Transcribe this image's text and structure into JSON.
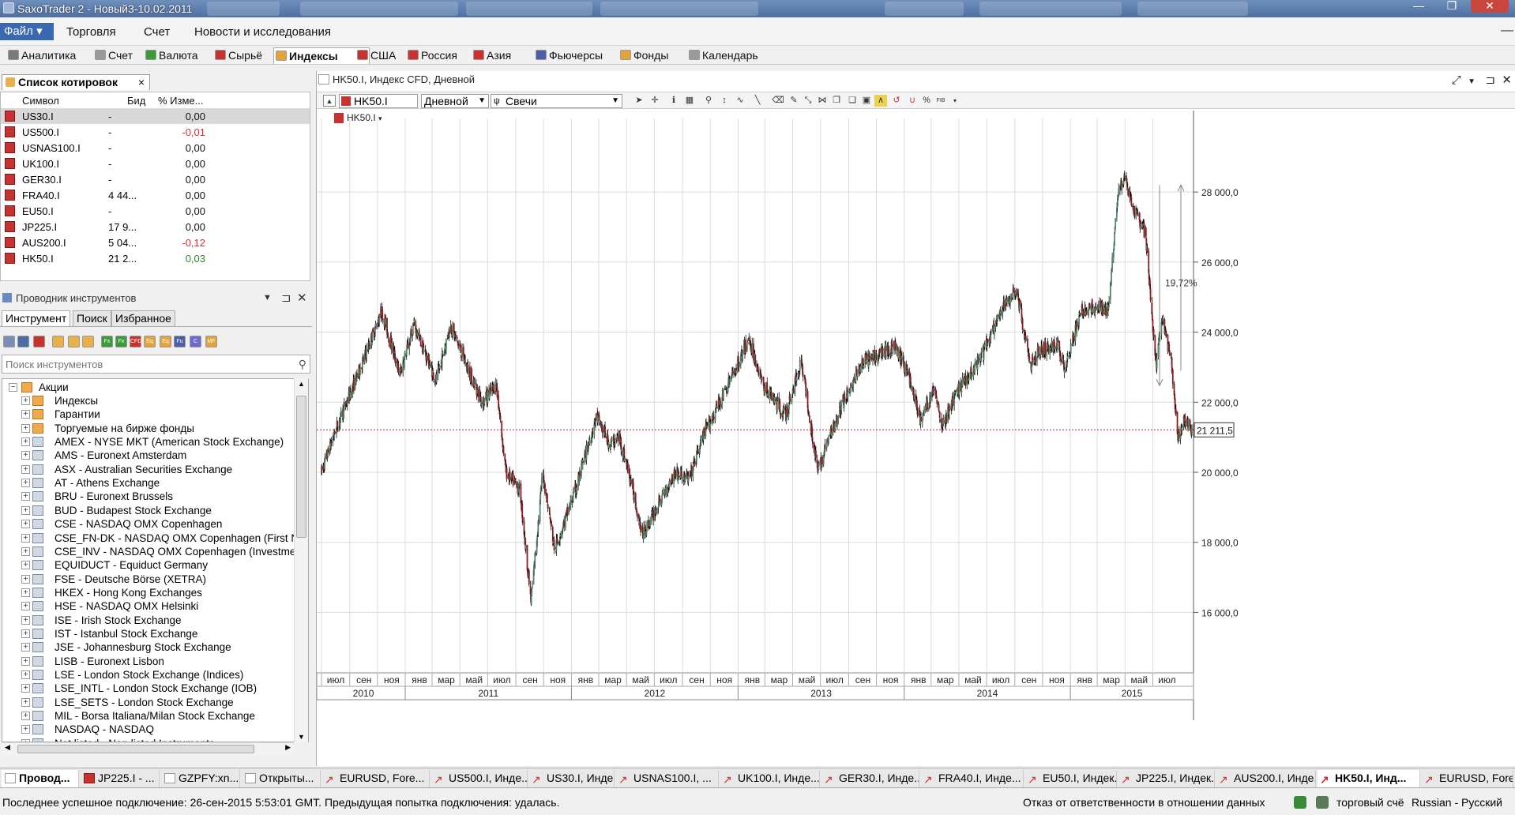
{
  "window": {
    "title": "SaxoTrader 2 - Новый3-10.02.2011",
    "controls": [
      "—",
      "❐",
      "✕"
    ]
  },
  "menu": {
    "file": "Файл",
    "items": [
      "Торговля",
      "Счет",
      "Новости и исследования"
    ],
    "min": "—"
  },
  "module_tabs": [
    {
      "label": "Аналитика",
      "icon": "analytics-icon",
      "color": "#7a7a7a"
    },
    {
      "label": "Счет",
      "icon": "account-icon",
      "color": "#9a9a9a"
    },
    {
      "label": "Валюта",
      "icon": "fx-icon",
      "color": "#3b9a3b"
    },
    {
      "label": "Сырьё",
      "icon": "cfd-icon",
      "color": "#c8322e"
    },
    {
      "label": "Индексы",
      "icon": "indices-icon",
      "color": "#e2a33a"
    },
    {
      "label": "США",
      "icon": "cfd-icon",
      "color": "#c8322e"
    },
    {
      "label": "Россия",
      "icon": "cfd-icon",
      "color": "#c8322e"
    },
    {
      "label": "Азия",
      "icon": "cfd-icon",
      "color": "#c8322e"
    },
    {
      "label": "Фьючерсы",
      "icon": "futures-icon",
      "color": "#4a5fa8"
    },
    {
      "label": "Фонды",
      "icon": "funds-icon",
      "color": "#e2a33a"
    },
    {
      "label": "Календарь",
      "icon": "calendar-icon",
      "color": "#9a9a9a"
    }
  ],
  "watchlist": {
    "tab_label": "Список котировок",
    "columns": {
      "symbol": "Символ",
      "bid": "Бид",
      "change": "% Изме..."
    },
    "rows": [
      {
        "symbol": "US30.I",
        "bid": "-",
        "change": "0,00",
        "dir": "flat"
      },
      {
        "symbol": "US500.I",
        "bid": "-",
        "change": "-0,01",
        "dir": "down"
      },
      {
        "symbol": "USNAS100.I",
        "bid": "-",
        "change": "0,00",
        "dir": "flat"
      },
      {
        "symbol": "UK100.I",
        "bid": "-",
        "change": "0,00",
        "dir": "flat"
      },
      {
        "symbol": "GER30.I",
        "bid": "-",
        "change": "0,00",
        "dir": "flat"
      },
      {
        "symbol": "FRA40.I",
        "bid": "4 44...",
        "change": "0,00",
        "dir": "flat"
      },
      {
        "symbol": "EU50.I",
        "bid": "-",
        "change": "0,00",
        "dir": "flat"
      },
      {
        "symbol": "JP225.I",
        "bid": "17 9...",
        "change": "0,00",
        "dir": "flat"
      },
      {
        "symbol": "AUS200.I",
        "bid": "5 04...",
        "change": "-0,12",
        "dir": "down"
      },
      {
        "symbol": "HK50.I",
        "bid": "21 2...",
        "change": "0,03",
        "dir": "up"
      }
    ],
    "colors": {
      "down": "#d0312d",
      "up": "#2a8a2a",
      "flat": "#111111"
    }
  },
  "explorer": {
    "title": "Проводник инструментов",
    "tabs": [
      "Инструмент",
      "Поиск",
      "Избранное"
    ],
    "search_placeholder": "Поиск инструментов",
    "toolbar_icons": [
      {
        "name": "all-icon",
        "text": "",
        "color": "#7a8fb5"
      },
      {
        "name": "stocks-icon",
        "text": "",
        "color": "#4a6fa8"
      },
      {
        "name": "bonds-icon",
        "text": "",
        "color": "#c8322e"
      },
      {
        "name": "tree-icon-1",
        "text": "",
        "color": "#e8b04a"
      },
      {
        "name": "tree-icon-2",
        "text": "",
        "color": "#e8b04a"
      },
      {
        "name": "tree-icon-3",
        "text": "",
        "color": "#e8b04a"
      },
      {
        "name": "fx-icon",
        "text": "Fx",
        "color": "#3b9a3b"
      },
      {
        "name": "fx-options-icon",
        "text": "Fx",
        "color": "#3b9a3b"
      },
      {
        "name": "cfd-icon",
        "text": "CFD",
        "color": "#c8322e"
      },
      {
        "name": "etf-icon",
        "text": "Eq",
        "color": "#e2a33a"
      },
      {
        "name": "etc-icon",
        "text": "Eq",
        "color": "#e2a33a"
      },
      {
        "name": "futures-icon",
        "text": "Fu",
        "color": "#4a5fa8"
      },
      {
        "name": "commodities-icon",
        "text": "C",
        "color": "#6b6bd0"
      },
      {
        "name": "mutual-funds-icon",
        "text": "MF",
        "color": "#e2a33a"
      }
    ],
    "tree": {
      "root": "Акции",
      "children": [
        {
          "label": "Индексы",
          "icon": "orange"
        },
        {
          "label": "Гарантии",
          "icon": "orange"
        },
        {
          "label": "Торгуемые на бирже фонды",
          "icon": "orange"
        },
        {
          "label": "AMEX - NYSE MKT (American Stock Exchange)",
          "icon": "blue"
        },
        {
          "label": "AMS - Euronext Amsterdam",
          "icon": "blue"
        },
        {
          "label": "ASX - Australian Securities Exchange",
          "icon": "blue"
        },
        {
          "label": "AT - Athens Exchange",
          "icon": "blue"
        },
        {
          "label": "BRU - Euronext Brussels",
          "icon": "blue"
        },
        {
          "label": "BUD - Budapest Stock Exchange",
          "icon": "blue"
        },
        {
          "label": "CSE - NASDAQ OMX Copenhagen",
          "icon": "blue"
        },
        {
          "label": "CSE_FN-DK - NASDAQ OMX Copenhagen (First N",
          "icon": "blue"
        },
        {
          "label": "CSE_INV - NASDAQ OMX Copenhagen (Investme",
          "icon": "blue"
        },
        {
          "label": "EQUIDUCT - Equiduct Germany",
          "icon": "blue"
        },
        {
          "label": "FSE - Deutsche Börse (XETRA)",
          "icon": "blue"
        },
        {
          "label": "HKEX - Hong Kong Exchanges",
          "icon": "blue"
        },
        {
          "label": "HSE - NASDAQ OMX Helsinki",
          "icon": "blue"
        },
        {
          "label": "ISE - Irish Stock Exchange",
          "icon": "blue"
        },
        {
          "label": "IST - Istanbul Stock Exchange",
          "icon": "blue"
        },
        {
          "label": "JSE - Johannesburg Stock Exchange",
          "icon": "blue"
        },
        {
          "label": "LISB - Euronext Lisbon",
          "icon": "blue"
        },
        {
          "label": "LSE - London Stock Exchange (Indices)",
          "icon": "blue"
        },
        {
          "label": "LSE_INTL - London Stock Exchange (IOB)",
          "icon": "blue"
        },
        {
          "label": "LSE_SETS - London Stock Exchange",
          "icon": "blue"
        },
        {
          "label": "MIL - Borsa Italiana/Milan Stock Exchange",
          "icon": "blue"
        },
        {
          "label": "NASDAQ - NASDAQ",
          "icon": "blue"
        },
        {
          "label": "Not listed - Non listed Instruments",
          "icon": "blue"
        }
      ]
    }
  },
  "chart": {
    "window_title": "HK50.I, Индекс CFD, Дневной",
    "instrument": "HK50.I",
    "period": "Дневной",
    "style": "Свечи",
    "series_label": "HK50.I",
    "current_price_label": "21 211,5",
    "current_price": 21211.5,
    "measure_label": "19,72%",
    "y_ticks": [
      "16 000,0",
      "18 000,0",
      "20 000,0",
      "22 000,0",
      "24 000,0",
      "26 000,0",
      "28 000,0"
    ],
    "y_tick_values": [
      16000,
      18000,
      20000,
      22000,
      24000,
      26000,
      28000
    ],
    "ylim": [
      14500,
      30100
    ],
    "months": [
      "июл",
      "сен",
      "ноя",
      "янв",
      "мар",
      "май",
      "июл",
      "сен",
      "ноя",
      "янв",
      "мар",
      "май",
      "июл",
      "сен",
      "ноя",
      "янв",
      "мар",
      "май",
      "июл",
      "сен",
      "ноя",
      "янв",
      "мар",
      "май",
      "июл",
      "сен",
      "ноя",
      "янв",
      "мар",
      "май",
      "июл"
    ],
    "years": [
      "2010",
      "2011",
      "2012",
      "2013",
      "2014",
      "2015"
    ],
    "colors": {
      "up": "#4f8a68",
      "down": "#8b1a22",
      "wick": "#111111",
      "priceline": "#c01818",
      "grid": "#dcdcdc"
    }
  },
  "chart_data": {
    "type": "candlestick",
    "title": "HK50.I, Индекс CFD, Дневной",
    "x_range": [
      "2010-07",
      "2015-09"
    ],
    "ylim": [
      14500,
      30100
    ],
    "last": 21211.5,
    "anchors": [
      {
        "date": "2010-07-01",
        "value": 20000
      },
      {
        "date": "2010-08-01",
        "value": 21200
      },
      {
        "date": "2010-10-01",
        "value": 23200
      },
      {
        "date": "2010-11-10",
        "value": 24600
      },
      {
        "date": "2010-12-20",
        "value": 22800
      },
      {
        "date": "2011-01-20",
        "value": 24200
      },
      {
        "date": "2011-03-10",
        "value": 22600
      },
      {
        "date": "2011-04-10",
        "value": 24200
      },
      {
        "date": "2011-05-20",
        "value": 22900
      },
      {
        "date": "2011-06-20",
        "value": 22000
      },
      {
        "date": "2011-07-20",
        "value": 22500
      },
      {
        "date": "2011-08-10",
        "value": 20000
      },
      {
        "date": "2011-09-10",
        "value": 19500
      },
      {
        "date": "2011-10-04",
        "value": 16300
      },
      {
        "date": "2011-10-30",
        "value": 20000
      },
      {
        "date": "2011-11-25",
        "value": 17800
      },
      {
        "date": "2012-01-10",
        "value": 19500
      },
      {
        "date": "2012-02-25",
        "value": 21600
      },
      {
        "date": "2012-03-25",
        "value": 20800
      },
      {
        "date": "2012-04-15",
        "value": 21000
      },
      {
        "date": "2012-05-10",
        "value": 19800
      },
      {
        "date": "2012-06-05",
        "value": 18200
      },
      {
        "date": "2012-07-15",
        "value": 19200
      },
      {
        "date": "2012-08-15",
        "value": 20000
      },
      {
        "date": "2012-09-15",
        "value": 19800
      },
      {
        "date": "2012-10-15",
        "value": 21000
      },
      {
        "date": "2012-12-10",
        "value": 22500
      },
      {
        "date": "2013-01-25",
        "value": 23800
      },
      {
        "date": "2013-02-25",
        "value": 22500
      },
      {
        "date": "2013-03-25",
        "value": 22000
      },
      {
        "date": "2013-04-15",
        "value": 21600
      },
      {
        "date": "2013-05-20",
        "value": 23200
      },
      {
        "date": "2013-06-25",
        "value": 20000
      },
      {
        "date": "2013-07-20",
        "value": 21000
      },
      {
        "date": "2013-08-20",
        "value": 22000
      },
      {
        "date": "2013-10-01",
        "value": 23100
      },
      {
        "date": "2013-11-10",
        "value": 23400
      },
      {
        "date": "2013-12-10",
        "value": 23600
      },
      {
        "date": "2014-01-10",
        "value": 22800
      },
      {
        "date": "2014-02-05",
        "value": 21500
      },
      {
        "date": "2014-03-10",
        "value": 22400
      },
      {
        "date": "2014-03-25",
        "value": 21300
      },
      {
        "date": "2014-05-01",
        "value": 22400
      },
      {
        "date": "2014-06-15",
        "value": 23200
      },
      {
        "date": "2014-08-15",
        "value": 24900
      },
      {
        "date": "2014-09-05",
        "value": 25200
      },
      {
        "date": "2014-10-05",
        "value": 23000
      },
      {
        "date": "2014-10-25",
        "value": 23500
      },
      {
        "date": "2014-12-05",
        "value": 23600
      },
      {
        "date": "2014-12-20",
        "value": 23000
      },
      {
        "date": "2015-01-25",
        "value": 24600
      },
      {
        "date": "2015-02-25",
        "value": 24700
      },
      {
        "date": "2015-03-25",
        "value": 24600
      },
      {
        "date": "2015-04-15",
        "value": 28000
      },
      {
        "date": "2015-05-01",
        "value": 28400
      },
      {
        "date": "2015-05-20",
        "value": 27500
      },
      {
        "date": "2015-06-15",
        "value": 26800
      },
      {
        "date": "2015-07-08",
        "value": 23000
      },
      {
        "date": "2015-07-20",
        "value": 24400
      },
      {
        "date": "2015-08-10",
        "value": 23200
      },
      {
        "date": "2015-08-25",
        "value": 21000
      },
      {
        "date": "2015-09-10",
        "value": 21500
      },
      {
        "date": "2015-09-25",
        "value": 21211.5
      }
    ]
  },
  "taskbar": [
    {
      "label": "Провод...",
      "icon": "blue",
      "active": true
    },
    {
      "label": "JP225.I - ...",
      "icon": "red"
    },
    {
      "label": "GZPFY:xn...",
      "icon": "blue"
    },
    {
      "label": "Открыты...",
      "icon": "blue"
    },
    {
      "label": "EURUSD, Fore...",
      "icon": "chart"
    },
    {
      "label": "US500.I, Инде...",
      "icon": "chart"
    },
    {
      "label": "US30.I, Индек...",
      "icon": "chart"
    },
    {
      "label": "USNAS100.I, ...",
      "icon": "chart"
    },
    {
      "label": "UK100.I, Инде...",
      "icon": "chart"
    },
    {
      "label": "GER30.I, Инде...",
      "icon": "chart"
    },
    {
      "label": "FRA40.I, Инде...",
      "icon": "chart"
    },
    {
      "label": "EU50.I, Индек...",
      "icon": "chart"
    },
    {
      "label": "JP225.I, Индек...",
      "icon": "chart"
    },
    {
      "label": "AUS200.I, Инде...",
      "icon": "chart"
    },
    {
      "label": "HK50.I, Инд...",
      "icon": "chart",
      "active": true
    },
    {
      "label": "EURUSD, Fore...",
      "icon": "chart"
    }
  ],
  "status": {
    "connection": "Последнее успешное подключение: 26-сен-2015 5:53:01 GMT. Предыдущая попытка подключения: удалась.",
    "disclaimer": "Отказ от ответственности в отношении данных",
    "account": "торговый счё",
    "language": "Russian - Русский"
  }
}
